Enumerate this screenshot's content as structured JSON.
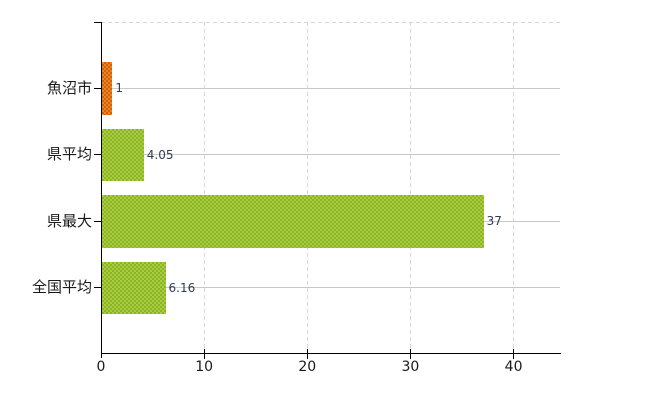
{
  "chart": {
    "background_color": "#ffffff",
    "axis_color": "#000000",
    "grid_vertical_color": "#d7d7d7",
    "grid_horizontal_color": "#c9c9c9",
    "plot_top_border_color": "#d7d7d7",
    "category_label_color": "#1a1a1a",
    "x_tick_label_color": "#1a1a1a",
    "value_label_color": "#2e3d52"
  },
  "chart_data": {
    "type": "bar",
    "orientation": "horizontal",
    "title": "",
    "xlabel": "",
    "ylabel": "",
    "categories": [
      "魚沼市",
      "県平均",
      "県最大",
      "全国平均"
    ],
    "values": [
      1,
      4.05,
      37,
      6.16
    ],
    "value_labels": [
      "1",
      "4.05",
      "37",
      "6.16"
    ],
    "bars": [
      {
        "category": "魚沼市",
        "value": 1,
        "label": "1",
        "color_base": "#ec8423",
        "color_dot": "#cd6212"
      },
      {
        "category": "県平均",
        "value": 4.05,
        "label": "4.05",
        "color_base": "#a8ce3e",
        "color_dot": "#8cb42a"
      },
      {
        "category": "県最大",
        "value": 37,
        "label": "37",
        "color_base": "#a8ce3e",
        "color_dot": "#8cb42a"
      },
      {
        "category": "全国平均",
        "value": 6.16,
        "label": "6.16",
        "color_base": "#a8ce3e",
        "color_dot": "#8cb42a"
      }
    ],
    "x_ticks": [
      0,
      10,
      20,
      30,
      40
    ],
    "x_tick_labels": [
      "0",
      "10",
      "20",
      "30",
      "40"
    ],
    "xlim": [
      0,
      44.5
    ],
    "grid": true,
    "legend_position": "none"
  }
}
